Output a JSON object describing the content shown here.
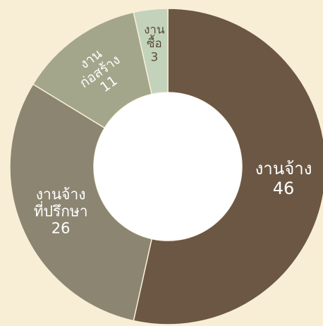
{
  "chart_data": {
    "type": "donut",
    "categories": [
      [
        "งานจ้าง"
      ],
      [
        "งานจ้าง",
        "ที่ปรึกษา"
      ],
      [
        "งาน",
        "ก่อสร้าง"
      ],
      [
        "งาน",
        "ซื้อ"
      ]
    ],
    "values": [
      46,
      26,
      11,
      3
    ],
    "colors": [
      "#6b5744",
      "#8b8572",
      "#a3a68a",
      "#c3d3bb"
    ],
    "label_colors": [
      "#ffffff",
      "#ffffff",
      "#ffffff",
      "#5b4a3a"
    ]
  }
}
